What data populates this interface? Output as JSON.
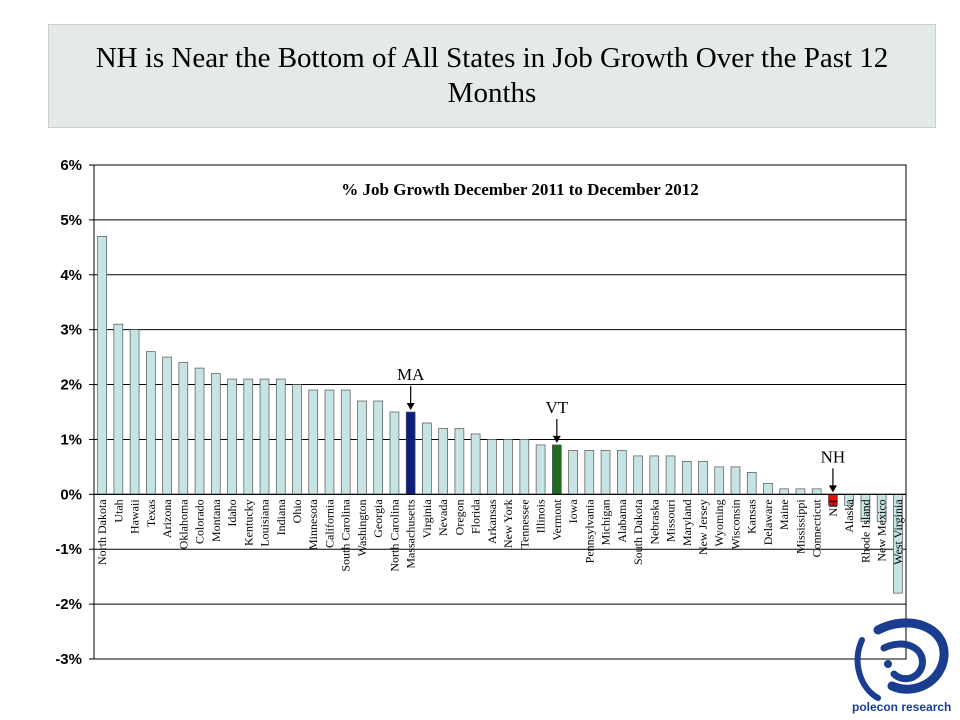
{
  "slide": {
    "title": "NH is Near the Bottom of All States in Job Growth Over the Past 12 Months"
  },
  "branding": {
    "logo_text": "polecon research"
  },
  "colors": {
    "bar_default": "#c6e4e4",
    "bar_ma": "#0a1f7a",
    "bar_vt": "#1f6b1f",
    "bar_nh": "#e01010",
    "bar_border": "#555555",
    "logo_blue": "#1a3d8f"
  },
  "chart_data": {
    "type": "bar",
    "title": "% Job Growth December 2011 to December 2012",
    "xlabel": "",
    "ylabel": "",
    "ylim": [
      -3,
      6
    ],
    "yticks": [
      6,
      5,
      4,
      3,
      2,
      1,
      0,
      -1,
      -2,
      -3
    ],
    "ytick_labels": [
      "6%",
      "5%",
      "4%",
      "3%",
      "2%",
      "1%",
      "0%",
      "-1%",
      "-2%",
      "-3%"
    ],
    "grid": true,
    "categories": [
      "North Dakota",
      "Utah",
      "Hawaii",
      "Texas",
      "Arizona",
      "Oklahoma",
      "Colorado",
      "Montana",
      "Idaho",
      "Kentucky",
      "Louisiana",
      "Indiana",
      "Ohio",
      "Minnesota",
      "California",
      "South Carolina",
      "Washington",
      "Georgia",
      "North Carolina",
      "Massachusetts",
      "Virginia",
      "Nevada",
      "Oregon",
      "Florida",
      "Arkansas",
      "New York",
      "Tennessee",
      "Illinois",
      "Vermont",
      "Iowa",
      "Pennsylvania",
      "Michigan",
      "Alabama",
      "South Dakota",
      "Nebraska",
      "Missouri",
      "Maryland",
      "New Jersey",
      "Wyoming",
      "Wisconsin",
      "Kansas",
      "Delaware",
      "Maine",
      "Mississippi",
      "Connecticut",
      "NH",
      "Alaska",
      "Rhode Island",
      "New Mexico",
      "West Virginia"
    ],
    "values": [
      4.7,
      3.1,
      3.0,
      2.6,
      2.5,
      2.4,
      2.3,
      2.2,
      2.1,
      2.1,
      2.1,
      2.1,
      2.0,
      1.9,
      1.9,
      1.9,
      1.7,
      1.7,
      1.5,
      1.5,
      1.3,
      1.2,
      1.2,
      1.1,
      1.0,
      1.0,
      1.0,
      0.9,
      0.9,
      0.8,
      0.8,
      0.8,
      0.8,
      0.7,
      0.7,
      0.7,
      0.6,
      0.6,
      0.5,
      0.5,
      0.4,
      0.2,
      0.1,
      0.1,
      0.1,
      -0.2,
      -0.2,
      -0.5,
      -0.5,
      -1.8
    ],
    "highlights": {
      "Massachusetts": "bar_ma",
      "Vermont": "bar_vt",
      "NH": "bar_nh"
    },
    "annotations": [
      {
        "text": "MA",
        "target": "Massachusetts"
      },
      {
        "text": "VT",
        "target": "Vermont"
      },
      {
        "text": "NH",
        "target": "NH"
      }
    ]
  }
}
